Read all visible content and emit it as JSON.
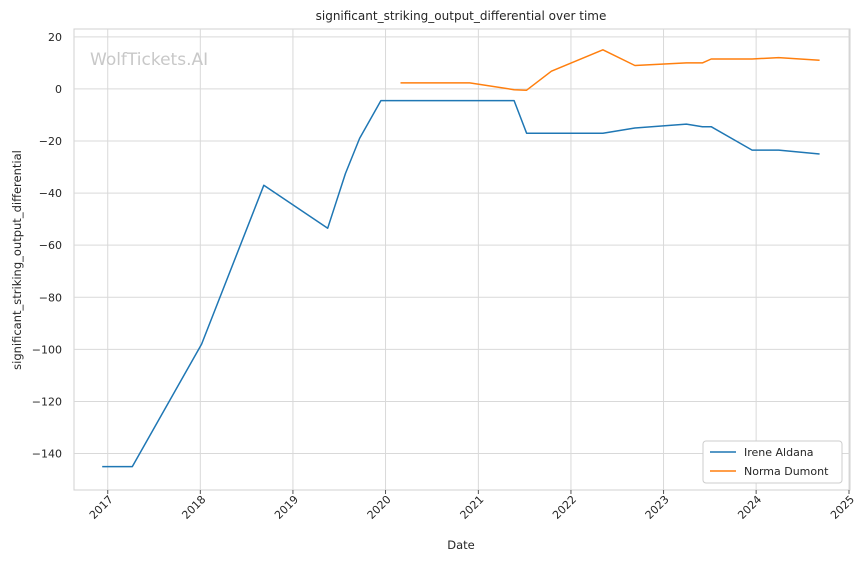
{
  "chart_data": {
    "type": "line",
    "title": "significant_striking_output_differential over time",
    "xlabel": "Date",
    "ylabel": "significant_striking_output_differential",
    "watermark": "WolfTickets.AI",
    "x_ticks": [
      "2017",
      "2018",
      "2019",
      "2020",
      "2021",
      "2022",
      "2023",
      "2024",
      "2025"
    ],
    "y_ticks": [
      20,
      0,
      -20,
      -40,
      -60,
      -80,
      -100,
      -120,
      -140
    ],
    "xlim": [
      "2016-08-21",
      "2025-01-05"
    ],
    "ylim": [
      -154,
      23
    ],
    "grid": true,
    "legend_position": "lower-right",
    "series": [
      {
        "name": "Irene Aldana",
        "color": "#1f77b4",
        "points": [
          [
            "2016-12-10",
            -145
          ],
          [
            "2017-04-08",
            -145
          ],
          [
            "2018-01-06",
            -98
          ],
          [
            "2018-09-08",
            -37
          ],
          [
            "2019-05-18",
            -53.5
          ],
          [
            "2019-07-27",
            -32.5
          ],
          [
            "2019-09-21",
            -19
          ],
          [
            "2019-12-14",
            -4.5
          ],
          [
            "2021-05-22",
            -4.5
          ],
          [
            "2021-07-10",
            -17
          ],
          [
            "2022-05-07",
            -17
          ],
          [
            "2022-09-10",
            -15
          ],
          [
            "2023-04-01",
            -13.5
          ],
          [
            "2023-06-03",
            -14.5
          ],
          [
            "2023-07-08",
            -14.5
          ],
          [
            "2023-12-16",
            -23.5
          ],
          [
            "2024-03-30",
            -23.5
          ],
          [
            "2024-09-07",
            -25
          ]
        ]
      },
      {
        "name": "Norma Dumont",
        "color": "#ff7f0e",
        "points": [
          [
            "2020-02-29",
            2.3
          ],
          [
            "2020-11-28",
            2.3
          ],
          [
            "2021-05-22",
            -0.3
          ],
          [
            "2021-07-10",
            -0.5
          ],
          [
            "2021-10-16",
            6.8
          ],
          [
            "2022-05-07",
            15
          ],
          [
            "2022-09-10",
            9
          ],
          [
            "2023-04-01",
            10
          ],
          [
            "2023-06-03",
            10
          ],
          [
            "2023-07-08",
            11.5
          ],
          [
            "2023-12-16",
            11.5
          ],
          [
            "2024-03-30",
            12
          ],
          [
            "2024-09-07",
            11
          ]
        ]
      }
    ]
  }
}
